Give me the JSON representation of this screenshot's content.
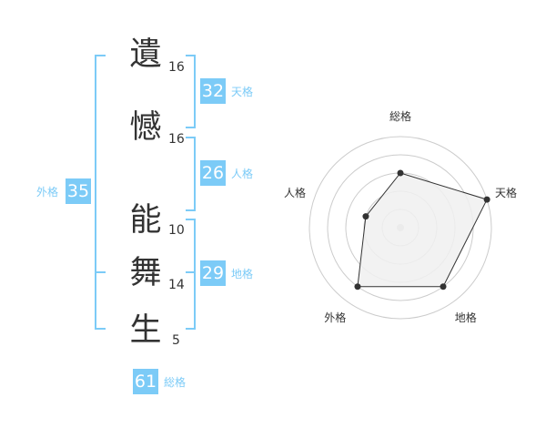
{
  "name": {
    "chars": [
      {
        "char": "遺",
        "strokes": "16"
      },
      {
        "char": "憾",
        "strokes": "16"
      },
      {
        "char": "能",
        "strokes": "10"
      },
      {
        "char": "舞",
        "strokes": "14"
      },
      {
        "char": "生",
        "strokes": "5"
      }
    ]
  },
  "fortunes": {
    "tenkaku": {
      "value": "32",
      "label": "天格"
    },
    "jinkaku": {
      "value": "26",
      "label": "人格"
    },
    "chikaku": {
      "value": "29",
      "label": "地格"
    },
    "gaikaku": {
      "value": "35",
      "label": "外格"
    },
    "soukaku": {
      "value": "61",
      "label": "総格"
    }
  },
  "chart_data": {
    "type": "radar",
    "axes": [
      "総格",
      "天格",
      "地格",
      "外格",
      "人格"
    ],
    "values": [
      3,
      5,
      4,
      4,
      2
    ],
    "range": [
      0,
      5
    ],
    "rings": 5,
    "colors": {
      "fill": "#f0f0f0",
      "line": "#333333",
      "grid": "#cccccc"
    }
  },
  "colors": {
    "accent": "#7ccbf7"
  }
}
